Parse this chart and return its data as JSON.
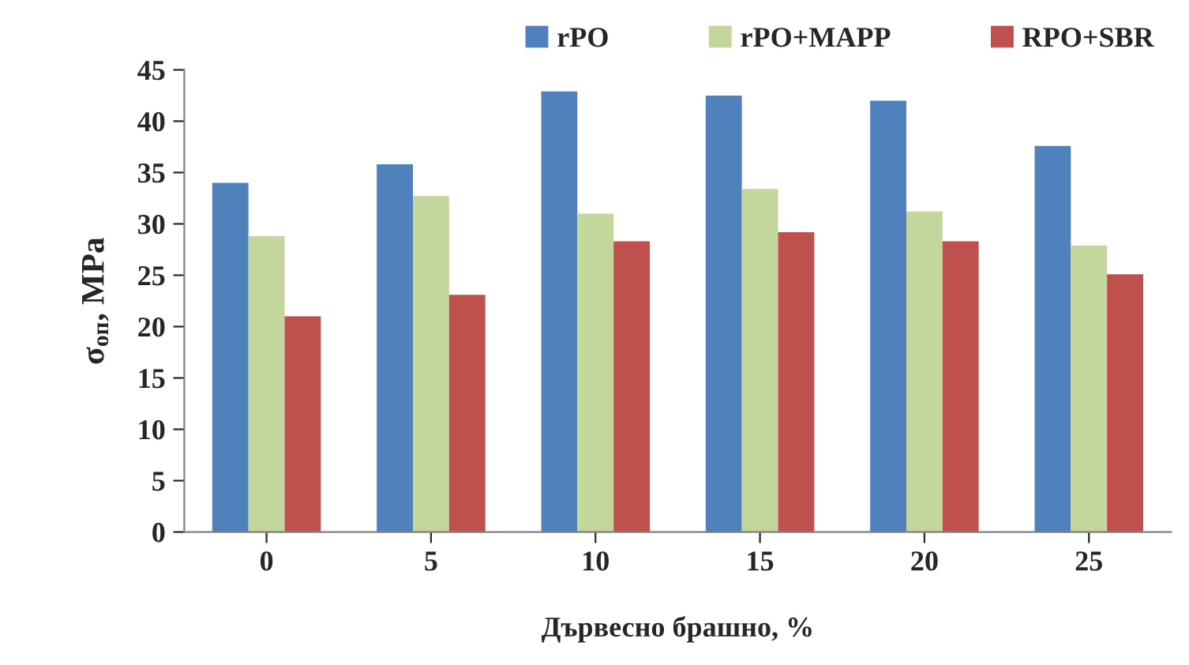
{
  "chart_data": {
    "type": "bar",
    "xlabel": "Дървесно брашно, %",
    "ylabel": "σ$_{оп}$, MPa",
    "categories": [
      "0",
      "5",
      "10",
      "15",
      "20",
      "25"
    ],
    "series": [
      {
        "name": "rPO",
        "color": "#4f81bd",
        "values": [
          34.0,
          35.8,
          42.9,
          42.5,
          42.0,
          37.6
        ]
      },
      {
        "name": "rPO+MAPP",
        "color": "#c3d69b",
        "values": [
          28.8,
          32.7,
          31.0,
          33.4,
          31.2,
          27.9
        ]
      },
      {
        "name": "RPO+SBR",
        "color": "#c0504d",
        "values": [
          21.0,
          23.1,
          28.3,
          29.2,
          28.3,
          25.1
        ]
      }
    ],
    "ylim": [
      0,
      45
    ],
    "yticks": [
      0,
      5,
      10,
      15,
      20,
      25,
      30,
      35,
      40,
      45
    ],
    "grid": false,
    "legend": "top right"
  }
}
